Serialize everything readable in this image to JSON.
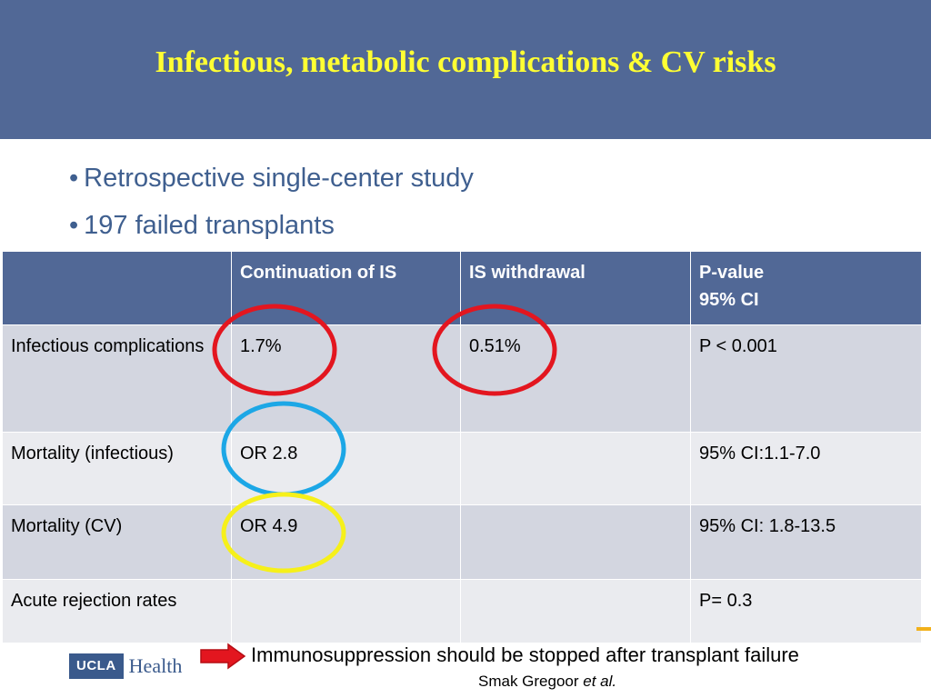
{
  "slide": {
    "title": "Infectious, metabolic complications & CV risks",
    "bullets": [
      {
        "symbol": "•",
        "text": "Retrospective single-center study"
      },
      {
        "symbol": "•",
        "text": "197 failed transplants"
      }
    ]
  },
  "table": {
    "headers": [
      "",
      "Continuation of IS",
      "IS withdrawal",
      "P-value",
      "95% CI"
    ],
    "rows": [
      {
        "label": "Infectious complications",
        "continuation": "1.7%",
        "withdrawal": "0.51%",
        "pvalue": "P < 0.001"
      },
      {
        "label": "Mortality (infectious)",
        "continuation": "OR 2.8",
        "withdrawal": "",
        "pvalue": "95% CI:1.1-7.0"
      },
      {
        "label": "Mortality (CV)",
        "continuation": "OR 4.9",
        "withdrawal": "",
        "pvalue": "95% CI: 1.8-13.5"
      },
      {
        "label": "Acute rejection rates",
        "continuation": "",
        "withdrawal": "",
        "pvalue": "P= 0.3"
      }
    ]
  },
  "annotations": {
    "ring_colors": {
      "red": "#e3161f",
      "blue": "#1ca7e6",
      "yellow": "#f6f01a"
    },
    "arrow_color": "#e3161f"
  },
  "footer": {
    "logo_box": "UCLA",
    "logo_word": "Health",
    "conclusion": "Immunosuppression should be stopped after transplant failure",
    "citation_author": "Smak Gregoor ",
    "citation_suffix": "et al."
  },
  "colors": {
    "header_bg": "#516896",
    "title": "#ffff33",
    "bullet_text": "#3f5f8f",
    "row_dark": "#d3d6e0",
    "row_light": "#eaebef",
    "accent": "#f2b11b"
  }
}
